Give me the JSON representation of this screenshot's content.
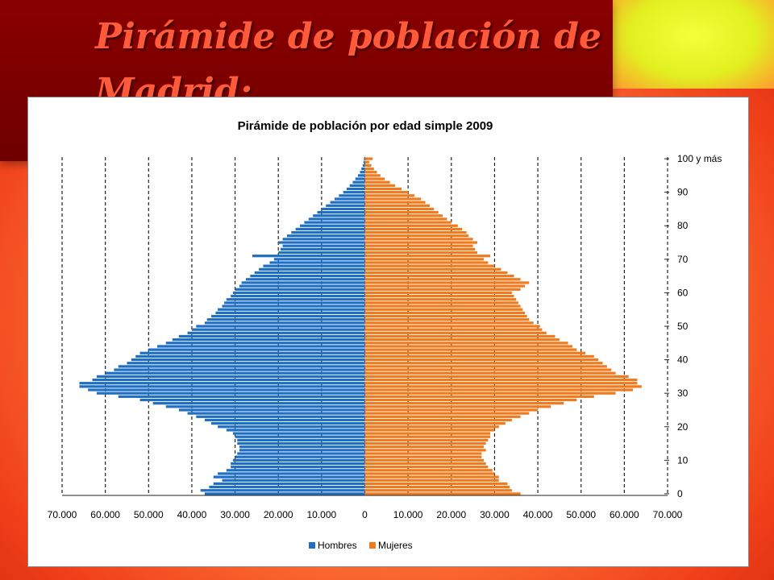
{
  "slide": {
    "title": "Pirámide de población de Madrid:"
  },
  "colors": {
    "hombres": "#1f6fc4",
    "mujeres": "#f07a1e"
  },
  "chart_data": {
    "type": "bar",
    "title": "Pirámide de población por edad simple 2009",
    "x_ticks": [
      "70.000",
      "60.000",
      "50.000",
      "40.000",
      "30.000",
      "20.000",
      "10.000",
      "0",
      "10.000",
      "20.000",
      "30.000",
      "40.000",
      "50.000",
      "60.000",
      "70.000"
    ],
    "y_ticks": [
      "100 y más",
      "90",
      "80",
      "70",
      "60",
      "50",
      "40",
      "30",
      "20",
      "10",
      "0"
    ],
    "xlim": [
      -70000,
      70000
    ],
    "age_range": [
      0,
      100
    ],
    "grid": "vertical-dashed",
    "legend_position": "bottom",
    "categories": [
      0,
      1,
      2,
      3,
      4,
      5,
      6,
      7,
      8,
      9,
      10,
      11,
      12,
      13,
      14,
      15,
      16,
      17,
      18,
      19,
      20,
      21,
      22,
      23,
      24,
      25,
      26,
      27,
      28,
      29,
      30,
      31,
      32,
      33,
      34,
      35,
      36,
      37,
      38,
      39,
      40,
      41,
      42,
      43,
      44,
      45,
      46,
      47,
      48,
      49,
      50,
      51,
      52,
      53,
      54,
      55,
      56,
      57,
      58,
      59,
      60,
      61,
      62,
      63,
      64,
      65,
      66,
      67,
      68,
      69,
      70,
      71,
      72,
      73,
      74,
      75,
      76,
      77,
      78,
      79,
      80,
      81,
      82,
      83,
      84,
      85,
      86,
      87,
      88,
      89,
      90,
      91,
      92,
      93,
      94,
      95,
      96,
      97,
      98,
      99,
      100
    ],
    "series": [
      {
        "name": "Hombres",
        "values": [
          37000,
          38000,
          36000,
          35000,
          33000,
          35000,
          34000,
          32000,
          31000,
          31000,
          30500,
          30000,
          29500,
          29000,
          29000,
          29500,
          29500,
          30000,
          30500,
          32000,
          34000,
          35500,
          37000,
          39000,
          41000,
          43000,
          46000,
          49000,
          52000,
          57000,
          62000,
          64000,
          66000,
          66000,
          63000,
          62000,
          60000,
          58000,
          57000,
          55000,
          54000,
          53000,
          52000,
          50000,
          48000,
          46000,
          44500,
          43000,
          41000,
          40000,
          39000,
          37000,
          36500,
          35500,
          34500,
          34000,
          33000,
          32500,
          32000,
          31000,
          30500,
          30000,
          29000,
          28500,
          27500,
          26500,
          25500,
          24500,
          23500,
          22000,
          21000,
          26000,
          20000,
          19500,
          19000,
          20000,
          19000,
          18000,
          17000,
          16000,
          15000,
          14000,
          13000,
          12000,
          11000,
          10000,
          9000,
          8000,
          7000,
          6000,
          5000,
          4200,
          3500,
          2800,
          2200,
          1600,
          1100,
          800,
          500,
          300,
          200
        ]
      },
      {
        "name": "Mujeres",
        "values": [
          36000,
          34000,
          33500,
          33000,
          31000,
          31000,
          30000,
          29500,
          28500,
          28000,
          27500,
          27000,
          27000,
          28000,
          27500,
          28000,
          28500,
          29000,
          29000,
          30000,
          31000,
          32500,
          34000,
          36000,
          38000,
          40000,
          43000,
          46000,
          49000,
          53000,
          58000,
          62000,
          64000,
          63000,
          63000,
          61000,
          58000,
          57000,
          56000,
          55000,
          54000,
          53000,
          51000,
          49000,
          48000,
          47000,
          45000,
          44000,
          42000,
          41000,
          40500,
          39000,
          38000,
          37500,
          37000,
          36500,
          36000,
          35500,
          35000,
          34500,
          34000,
          36000,
          37000,
          38000,
          36000,
          34500,
          33000,
          31500,
          30000,
          28500,
          27500,
          29000,
          26000,
          25500,
          25000,
          26000,
          25000,
          24000,
          23500,
          22500,
          21500,
          20000,
          19000,
          18000,
          17000,
          16000,
          15000,
          14000,
          13000,
          11500,
          10000,
          8500,
          7000,
          5800,
          4600,
          3600,
          2800,
          2100,
          1500,
          1000,
          1800
        ]
      }
    ]
  }
}
